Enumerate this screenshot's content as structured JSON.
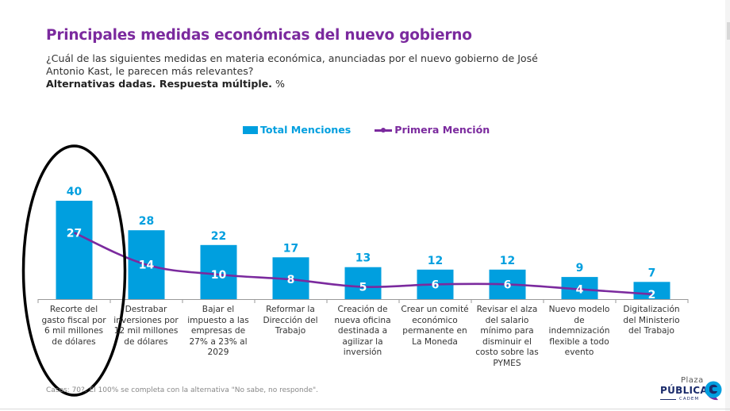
{
  "header": {
    "title": "Principales medidas económicas del nuevo gobierno",
    "question": "¿Cuál de las siguientes medidas en materia económica, anunciadas por el nuevo gobierno de José Antonio Kast, le parecen más relevantes?",
    "note_bold": "Alternativas dadas. Respuesta múltiple.",
    "note_unit": " %"
  },
  "colors": {
    "title": "#7b2a9e",
    "bar": "#009fdf",
    "line": "#7b2a9e",
    "highlight_annotation": "#000000"
  },
  "chart_data": {
    "type": "bar",
    "title": "Principales medidas económicas del nuevo gobierno",
    "xlabel": "",
    "ylabel": "%",
    "ylim": [
      0,
      45
    ],
    "grid": false,
    "legend_position": "top-center",
    "categories": [
      "Recorte del gasto fiscal por 6 mil millones de dólares",
      "Destrabar inversiones por 12 mil millones de dólares",
      "Bajar el impuesto a las empresas de 27% a 23% al 2029",
      "Reformar la Dirección del Trabajo",
      "Creación de nueva oficina destinada a agilizar la inversión",
      "Crear un comité económico permanente en La Moneda",
      "Revisar el alza del salario mínimo para disminuir el costo sobre las PYMES",
      "Nuevo modelo de indemnización flexible a todo evento",
      "Digitalización del Ministerio del Trabajo"
    ],
    "series": [
      {
        "name": "Total Menciones",
        "type": "bar",
        "values": [
          40,
          28,
          22,
          17,
          13,
          12,
          12,
          9,
          7
        ]
      },
      {
        "name": "Primera Mención",
        "type": "line",
        "values": [
          27,
          14,
          10,
          8,
          5,
          6,
          6,
          4,
          2
        ]
      }
    ],
    "annotations": [
      {
        "type": "hand-drawn-ellipse",
        "target_category_index": 0
      }
    ]
  },
  "legend": {
    "bar_label": "Total Menciones",
    "line_label": "Primera Mención"
  },
  "footnote": "Casos: 70?. El 100% se completa con la alternativa \"No sabe, no responde\".",
  "logo": {
    "line1": "Plaza",
    "line2": "PÚBLICA",
    "line3": "CADEM"
  }
}
